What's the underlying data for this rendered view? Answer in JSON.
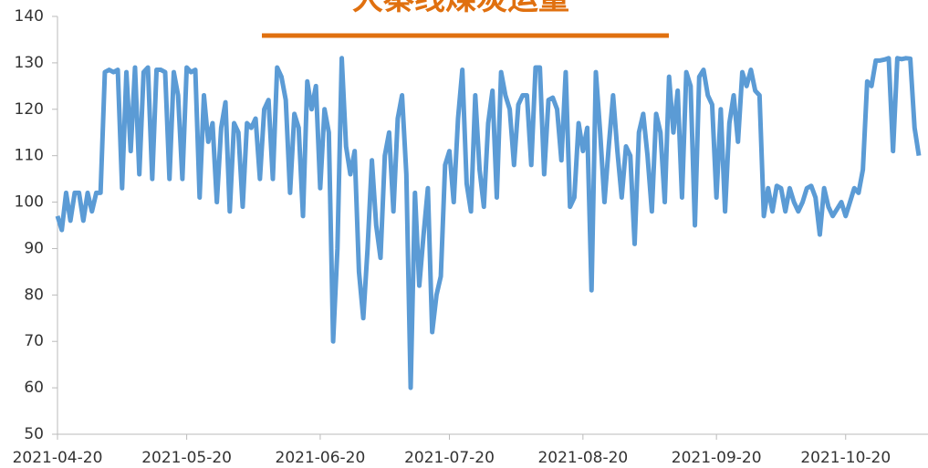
{
  "chart_data": {
    "type": "line",
    "title": "大秦线煤炭运量",
    "x": [
      "2021-04-20",
      "2021-04-21",
      "2021-04-22",
      "2021-04-23",
      "2021-04-24",
      "2021-04-25",
      "2021-04-26",
      "2021-04-27",
      "2021-04-28",
      "2021-04-29",
      "2021-04-30",
      "2021-05-01",
      "2021-05-02",
      "2021-05-03",
      "2021-05-04",
      "2021-05-05",
      "2021-05-06",
      "2021-05-07",
      "2021-05-08",
      "2021-05-09",
      "2021-05-10",
      "2021-05-11",
      "2021-05-12",
      "2021-05-13",
      "2021-05-14",
      "2021-05-15",
      "2021-05-16",
      "2021-05-17",
      "2021-05-18",
      "2021-05-19",
      "2021-05-20",
      "2021-05-21",
      "2021-05-22",
      "2021-05-23",
      "2021-05-24",
      "2021-05-25",
      "2021-05-26",
      "2021-05-27",
      "2021-05-28",
      "2021-05-29",
      "2021-05-30",
      "2021-05-31",
      "2021-06-01",
      "2021-06-02",
      "2021-06-03",
      "2021-06-04",
      "2021-06-05",
      "2021-06-06",
      "2021-06-07",
      "2021-06-08",
      "2021-06-09",
      "2021-06-10",
      "2021-06-11",
      "2021-06-12",
      "2021-06-13",
      "2021-06-14",
      "2021-06-15",
      "2021-06-16",
      "2021-06-17",
      "2021-06-18",
      "2021-06-19",
      "2021-06-20",
      "2021-06-21",
      "2021-06-22",
      "2021-06-23",
      "2021-06-24",
      "2021-06-25",
      "2021-06-26",
      "2021-06-27",
      "2021-06-28",
      "2021-06-29",
      "2021-06-30",
      "2021-07-01",
      "2021-07-02",
      "2021-07-03",
      "2021-07-04",
      "2021-07-05",
      "2021-07-06",
      "2021-07-07",
      "2021-07-08",
      "2021-07-09",
      "2021-07-10",
      "2021-07-11",
      "2021-07-12",
      "2021-07-13",
      "2021-07-14",
      "2021-07-15",
      "2021-07-16",
      "2021-07-17",
      "2021-07-18",
      "2021-07-19",
      "2021-07-20",
      "2021-07-21",
      "2021-07-22",
      "2021-07-23",
      "2021-07-24",
      "2021-07-25",
      "2021-07-26",
      "2021-07-27",
      "2021-07-28",
      "2021-07-29",
      "2021-07-30",
      "2021-07-31",
      "2021-08-01",
      "2021-08-02",
      "2021-08-03",
      "2021-08-04",
      "2021-08-05",
      "2021-08-06",
      "2021-08-07",
      "2021-08-08",
      "2021-08-09",
      "2021-08-10",
      "2021-08-11",
      "2021-08-12",
      "2021-08-13",
      "2021-08-14",
      "2021-08-15",
      "2021-08-16",
      "2021-08-17",
      "2021-08-18",
      "2021-08-19",
      "2021-08-20",
      "2021-08-21",
      "2021-08-22",
      "2021-08-23",
      "2021-08-24",
      "2021-08-25",
      "2021-08-26",
      "2021-08-27",
      "2021-08-28",
      "2021-08-29",
      "2021-08-30",
      "2021-08-31",
      "2021-09-01",
      "2021-09-02",
      "2021-09-03",
      "2021-09-04",
      "2021-09-05",
      "2021-09-06",
      "2021-09-07",
      "2021-09-08",
      "2021-09-09",
      "2021-09-10",
      "2021-09-11",
      "2021-09-12",
      "2021-09-13",
      "2021-09-14",
      "2021-09-15",
      "2021-09-16",
      "2021-09-17",
      "2021-09-18",
      "2021-09-19",
      "2021-09-20",
      "2021-09-21",
      "2021-09-22",
      "2021-09-23",
      "2021-09-24",
      "2021-09-25",
      "2021-09-26",
      "2021-09-27",
      "2021-09-28",
      "2021-09-29",
      "2021-09-30",
      "2021-10-01",
      "2021-10-02",
      "2021-10-03",
      "2021-10-04",
      "2021-10-05",
      "2021-10-06",
      "2021-10-07",
      "2021-10-08",
      "2021-10-09",
      "2021-10-10",
      "2021-10-11",
      "2021-10-12",
      "2021-10-13",
      "2021-10-14",
      "2021-10-15",
      "2021-10-16",
      "2021-10-17",
      "2021-10-18",
      "2021-10-19",
      "2021-10-20",
      "2021-10-21",
      "2021-10-22",
      "2021-10-23",
      "2021-10-24",
      "2021-10-25",
      "2021-10-26",
      "2021-10-27",
      "2021-10-28",
      "2021-10-29",
      "2021-10-30",
      "2021-10-31",
      "2021-11-01",
      "2021-11-02",
      "2021-11-03",
      "2021-11-04",
      "2021-11-05",
      "2021-11-06"
    ],
    "series": [
      {
        "color": "#5b9bd5",
        "values": [
          97,
          94,
          102,
          96,
          102,
          102,
          96,
          102,
          98,
          102,
          102,
          128,
          128.5,
          128,
          128.5,
          103,
          128,
          111,
          129,
          106,
          128,
          129,
          105,
          128.5,
          128.5,
          128,
          105,
          128,
          123,
          105,
          129,
          128,
          128.5,
          101,
          123,
          113,
          117,
          100,
          116,
          121.5,
          98,
          117,
          115,
          99,
          117,
          116,
          118,
          105,
          120,
          122,
          105,
          129,
          127,
          122,
          102,
          119,
          116,
          97,
          126,
          120,
          125,
          103,
          120,
          115,
          70,
          90,
          131,
          112,
          106,
          111,
          85,
          75,
          90,
          109,
          95,
          88,
          110,
          115,
          98,
          118,
          123,
          106,
          60,
          102,
          82,
          93,
          103,
          72,
          80,
          84,
          108,
          111,
          100,
          118,
          128.5,
          104,
          98,
          123,
          107,
          99,
          117,
          124,
          101,
          128,
          123,
          120,
          108,
          121,
          123,
          123,
          108,
          129,
          129,
          106,
          122,
          122.5,
          120,
          109,
          128,
          99,
          101,
          117,
          111,
          116,
          81,
          128,
          115,
          100,
          112,
          123,
          111,
          101,
          112,
          110,
          91,
          115,
          119,
          110,
          98,
          119,
          115,
          100,
          127,
          115,
          124,
          101,
          128,
          125,
          95,
          127,
          128.5,
          123,
          121,
          101,
          120,
          98,
          117,
          123,
          113,
          128,
          125,
          128.5,
          124,
          123,
          97,
          103,
          98,
          103.5,
          103,
          98,
          103,
          100,
          98,
          100,
          103,
          103.5,
          101,
          93,
          103,
          99,
          97,
          98.5,
          100,
          97,
          100,
          103,
          102,
          107,
          126,
          125,
          130.5,
          130.5,
          130.7,
          131,
          111,
          131,
          130.8,
          131,
          130.9,
          116,
          110
        ]
      }
    ],
    "xlim": [
      "2021-04-20",
      "2021-11-06"
    ],
    "xticks": [
      "2021-04-20",
      "2021-05-20",
      "2021-06-20",
      "2021-07-20",
      "2021-08-20",
      "2021-09-20",
      "2021-10-20"
    ],
    "ylim": [
      50,
      140
    ],
    "yticks": [
      50,
      60,
      70,
      80,
      90,
      100,
      110,
      120,
      130,
      140
    ],
    "grid": false
  }
}
